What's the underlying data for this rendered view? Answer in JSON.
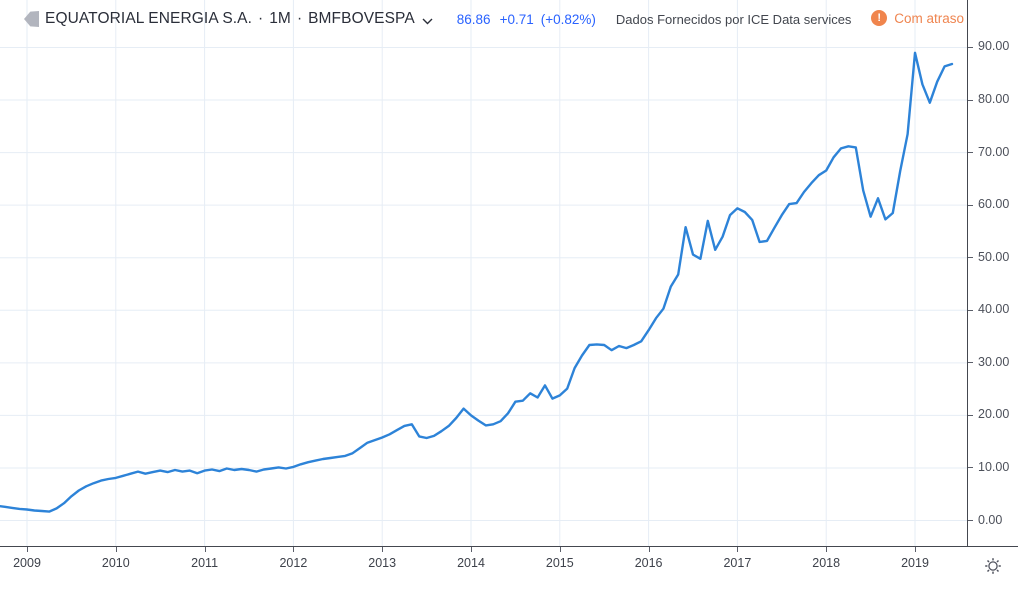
{
  "header": {
    "symbol_name": "EQUATORIAL ENERGIA S.A.",
    "separator": "·",
    "interval": "1M",
    "exchange": "BMFBOVESPA",
    "price": "86.86",
    "change": "+0.71",
    "change_percent": "(+0.82%)",
    "provider_note": "Dados Fornecidos por ICE Data services",
    "delay_badge_label": "Com atraso",
    "delay_badge_icon": "!"
  },
  "colors": {
    "quote_blue": "#2962ff",
    "line_blue": "#2d83d8",
    "delay_orange": "#ef8550",
    "grid": "#e6edf5",
    "axis_line": "#44474f",
    "axis_text": "#4c505a",
    "title_text": "#2a2e39",
    "logo_gray": "#b2b5be"
  },
  "chart_data": {
    "type": "line",
    "title": "EQUATORIAL ENERGIA S.A. · 1M · BMFBOVESPA",
    "frequency": "monthly",
    "x_start_month": "2008-09",
    "x_end_month": "2019-06",
    "last_price": 86.86,
    "change": 0.71,
    "change_percent": 0.82,
    "grid": true,
    "y_axis_position": "right",
    "ylim": [
      0,
      90
    ],
    "x_tick_labels": [
      "2009",
      "2010",
      "2011",
      "2012",
      "2013",
      "2014",
      "2015",
      "2016",
      "2017",
      "2018",
      "2019"
    ],
    "y_tick_values": [
      0,
      10,
      20,
      30,
      40,
      50,
      60,
      70,
      80,
      90
    ],
    "y_tick_labels": [
      "0.00",
      "10.00",
      "20.00",
      "30.00",
      "40.00",
      "50.00",
      "60.00",
      "70.00",
      "80.00",
      "90.00"
    ],
    "values": [
      2.8,
      2.6,
      2.4,
      2.2,
      2.1,
      1.9,
      1.8,
      1.7,
      2.3,
      3.3,
      4.6,
      5.7,
      6.5,
      7.1,
      7.6,
      7.9,
      8.1,
      8.5,
      8.9,
      9.3,
      8.9,
      9.2,
      9.5,
      9.2,
      9.6,
      9.3,
      9.5,
      9.0,
      9.5,
      9.7,
      9.4,
      9.9,
      9.6,
      9.8,
      9.6,
      9.3,
      9.7,
      9.9,
      10.1,
      9.9,
      10.2,
      10.7,
      11.1,
      11.4,
      11.7,
      11.9,
      12.1,
      12.3,
      12.8,
      13.8,
      14.8,
      15.3,
      15.8,
      16.4,
      17.2,
      18.0,
      18.3,
      16.0,
      15.7,
      16.1,
      17.0,
      18.0,
      19.5,
      21.3,
      20.0,
      19.0,
      18.1,
      18.3,
      18.9,
      20.4,
      22.6,
      22.8,
      24.2,
      23.4,
      25.7,
      23.2,
      23.8,
      25.1,
      29.0,
      31.4,
      33.4,
      33.5,
      33.4,
      32.4,
      33.2,
      32.8,
      33.4,
      34.1,
      36.2,
      38.5,
      40.3,
      44.5,
      46.8,
      55.8,
      50.6,
      49.8,
      57.0,
      51.5,
      54.0,
      58.1,
      59.4,
      58.7,
      57.2,
      53.0,
      53.2,
      55.7,
      58.1,
      60.2,
      60.4,
      62.5,
      64.2,
      65.7,
      66.6,
      69.1,
      70.8,
      71.2,
      71.0,
      62.8,
      57.8,
      61.3,
      57.3,
      58.5,
      66.5,
      73.5,
      89.0,
      83.0,
      79.5,
      83.5,
      86.4,
      86.86
    ]
  }
}
